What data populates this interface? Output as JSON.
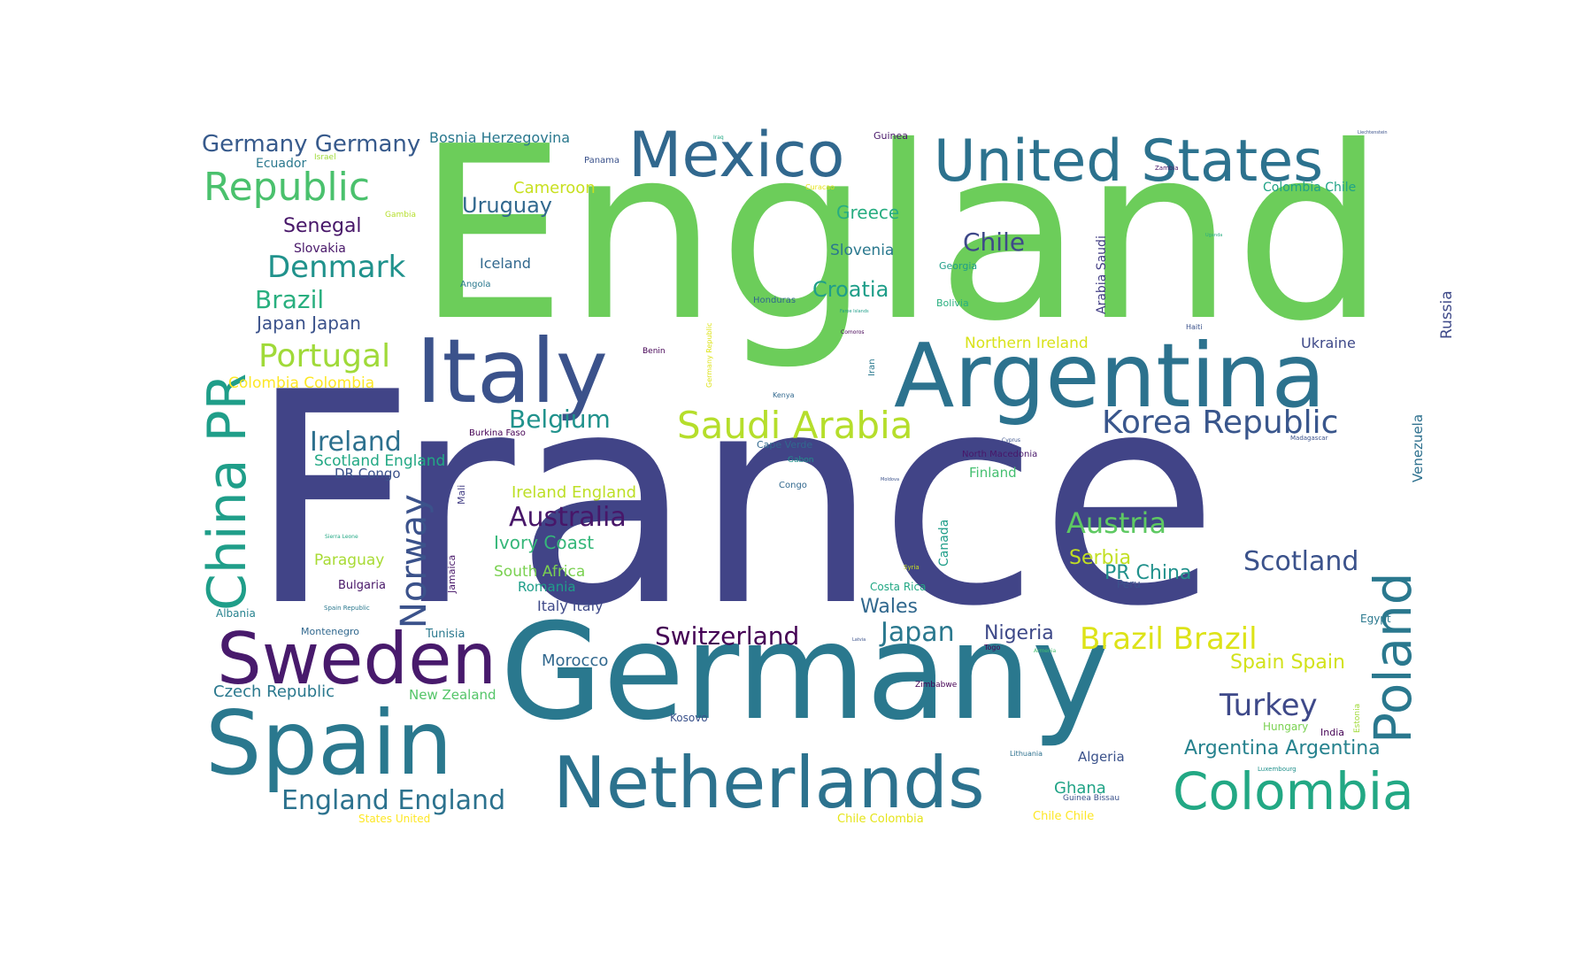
{
  "words": [
    {
      "text": "England",
      "color": "#6ccd5a",
      "vertical": false
    },
    {
      "text": "France",
      "color": "#414487",
      "vertical": false
    },
    {
      "text": "Germany",
      "color": "#2a788e",
      "vertical": false
    },
    {
      "text": "Italy",
      "color": "#3b528b",
      "vertical": false
    },
    {
      "text": "Argentina",
      "color": "#2c728e",
      "vertical": false
    },
    {
      "text": "Mexico",
      "color": "#31688e",
      "vertical": false
    },
    {
      "text": "United States",
      "color": "#2c728e",
      "vertical": false
    },
    {
      "text": "Spain",
      "color": "#2a788e",
      "vertical": false
    },
    {
      "text": "Netherlands",
      "color": "#2c728e",
      "vertical": false
    },
    {
      "text": "Sweden",
      "color": "#481a6c",
      "vertical": false
    },
    {
      "text": "Colombia",
      "color": "#22a884",
      "vertical": false
    },
    {
      "text": "China PR",
      "color": "#1f9e89",
      "vertical": true
    },
    {
      "text": "Poland",
      "color": "#2a788e",
      "vertical": true
    },
    {
      "text": "Republic",
      "color": "#4ac16d",
      "vertical": false
    },
    {
      "text": "Saudi Arabia",
      "color": "#b5de2b",
      "vertical": false
    },
    {
      "text": "Korea Republic",
      "color": "#39568c",
      "vertical": false
    },
    {
      "text": "Germany Germany",
      "color": "#375a8c",
      "vertical": false
    },
    {
      "text": "Denmark",
      "color": "#20928c",
      "vertical": false
    },
    {
      "text": "Portugal",
      "color": "#a0da39",
      "vertical": false
    },
    {
      "text": "Belgium",
      "color": "#20928c",
      "vertical": false
    },
    {
      "text": "Ireland",
      "color": "#2d708e",
      "vertical": false
    },
    {
      "text": "Australia",
      "color": "#481769",
      "vertical": false
    },
    {
      "text": "Austria",
      "color": "#5ec962",
      "vertical": false
    },
    {
      "text": "Scotland",
      "color": "#3b528b",
      "vertical": false
    },
    {
      "text": "Switzerland",
      "color": "#440154",
      "vertical": false
    },
    {
      "text": "Japan",
      "color": "#2a788e",
      "vertical": false
    },
    {
      "text": "Brazil Brazil",
      "color": "#dde318",
      "vertical": false
    },
    {
      "text": "Turkey",
      "color": "#3e4989",
      "vertical": false
    },
    {
      "text": "England England",
      "color": "#2c728e",
      "vertical": false
    },
    {
      "text": "Norway",
      "color": "#3b528b",
      "vertical": true
    },
    {
      "text": "Chile",
      "color": "#3e4989",
      "vertical": false
    },
    {
      "text": "Brazil",
      "color": "#29af7f",
      "vertical": false
    },
    {
      "text": "Senegal",
      "color": "#481769",
      "vertical": false
    },
    {
      "text": "Uruguay",
      "color": "#31688e",
      "vertical": false
    },
    {
      "text": "Croatia",
      "color": "#1f9e89",
      "vertical": false
    },
    {
      "text": "Greece",
      "color": "#27ad81",
      "vertical": false
    },
    {
      "text": "Slovenia",
      "color": "#2a788e",
      "vertical": false
    },
    {
      "text": "Serbia",
      "color": "#c2df23",
      "vertical": false
    },
    {
      "text": "PR China",
      "color": "#21918c",
      "vertical": false
    },
    {
      "text": "Wales",
      "color": "#31688e",
      "vertical": false
    },
    {
      "text": "Nigeria",
      "color": "#3e4989",
      "vertical": false
    },
    {
      "text": "Spain Spain",
      "color": "#d2e21b",
      "vertical": false
    },
    {
      "text": "Argentina Argentina",
      "color": "#26828e",
      "vertical": false
    },
    {
      "text": "Morocco",
      "color": "#31688e",
      "vertical": false
    },
    {
      "text": "Japan Japan",
      "color": "#3b528b",
      "vertical": false
    },
    {
      "text": "Iceland",
      "color": "#31688e",
      "vertical": false
    },
    {
      "text": "Cameroon",
      "color": "#c8e020",
      "vertical": false
    },
    {
      "text": "Bosnia Herzegovina",
      "color": "#2a788e",
      "vertical": false
    },
    {
      "text": "Colombia Chile",
      "color": "#20a386",
      "vertical": false
    },
    {
      "text": "Colombia Colombia",
      "color": "#fde725",
      "vertical": false
    },
    {
      "text": "Scotland England",
      "color": "#22a884",
      "vertical": false
    },
    {
      "text": "DR Congo",
      "color": "#3b528b",
      "vertical": false
    },
    {
      "text": "Ireland England",
      "color": "#bddf26",
      "vertical": false
    },
    {
      "text": "Ivory Coast",
      "color": "#35b779",
      "vertical": false
    },
    {
      "text": "Paraguay",
      "color": "#a8db34",
      "vertical": false
    },
    {
      "text": "South Africa",
      "color": "#7ad151",
      "vertical": false
    },
    {
      "text": "Romania",
      "color": "#1f9e89",
      "vertical": false
    },
    {
      "text": "Italy Italy",
      "color": "#3e4989",
      "vertical": false
    },
    {
      "text": "Czech Republic",
      "color": "#2a788e",
      "vertical": false
    },
    {
      "text": "New Zealand",
      "color": "#54c568",
      "vertical": false
    },
    {
      "text": "Northern Ireland",
      "color": "#d8e219",
      "vertical": false
    },
    {
      "text": "Finland",
      "color": "#44bf70",
      "vertical": false
    },
    {
      "text": "Ukraine",
      "color": "#3e4989",
      "vertical": false
    },
    {
      "text": "Russia",
      "color": "#3e4989",
      "vertical": true
    },
    {
      "text": "Venezuela",
      "color": "#2d708e",
      "vertical": true
    },
    {
      "text": "Arabia Saudi",
      "color": "#433e85",
      "vertical": true
    },
    {
      "text": "Algeria",
      "color": "#3b528b",
      "vertical": false
    },
    {
      "text": "Ghana",
      "color": "#20a386",
      "vertical": false
    },
    {
      "text": "Chile Chile",
      "color": "#fde725",
      "vertical": false
    },
    {
      "text": "Chile Colombia",
      "color": "#e5e419",
      "vertical": false
    },
    {
      "text": "States United",
      "color": "#fde725",
      "vertical": false
    },
    {
      "text": "Slovakia",
      "color": "#481769",
      "vertical": false
    },
    {
      "text": "Ecuador",
      "color": "#2a788e",
      "vertical": false
    },
    {
      "text": "Bulgaria",
      "color": "#481769",
      "vertical": false
    },
    {
      "text": "Albania",
      "color": "#26828e",
      "vertical": false
    },
    {
      "text": "Montenegro",
      "color": "#31688e",
      "vertical": false
    },
    {
      "text": "Tunisia",
      "color": "#2a788e",
      "vertical": false
    },
    {
      "text": "Kosovo",
      "color": "#3b528b",
      "vertical": false
    },
    {
      "text": "Costa Rica",
      "color": "#22a884",
      "vertical": false
    },
    {
      "text": "Canada",
      "color": "#1f9e89",
      "vertical": true
    },
    {
      "text": "Jamaica",
      "color": "#481769",
      "vertical": true
    },
    {
      "text": "Mali",
      "color": "#433e85",
      "vertical": true
    },
    {
      "text": "Hungary",
      "color": "#7ad151",
      "vertical": false
    },
    {
      "text": "India",
      "color": "#440154",
      "vertical": false
    },
    {
      "text": "Egypt",
      "color": "#2a788e",
      "vertical": false
    },
    {
      "text": "Peru",
      "color": "#3b528b",
      "vertical": false
    },
    {
      "text": "Estonia",
      "color": "#a0da39",
      "vertical": true
    },
    {
      "text": "Guinea",
      "color": "#481769",
      "vertical": false
    },
    {
      "text": "Panama",
      "color": "#3b528b",
      "vertical": false
    },
    {
      "text": "Georgia",
      "color": "#1f9e89",
      "vertical": false
    },
    {
      "text": "Bolivia",
      "color": "#29af7f",
      "vertical": false
    },
    {
      "text": "Honduras",
      "color": "#31688e",
      "vertical": false
    },
    {
      "text": "Angola",
      "color": "#2a788e",
      "vertical": false
    },
    {
      "text": "Gambia",
      "color": "#b5de2b",
      "vertical": false
    },
    {
      "text": "Israel",
      "color": "#a0da39",
      "vertical": false
    },
    {
      "text": "Burkina Faso",
      "color": "#440154",
      "vertical": false
    },
    {
      "text": "Cape Verde",
      "color": "#31688e",
      "vertical": false
    },
    {
      "text": "Gabon",
      "color": "#20928c",
      "vertical": false
    },
    {
      "text": "Congo",
      "color": "#31688e",
      "vertical": false
    },
    {
      "text": "North Macedonia",
      "color": "#481769",
      "vertical": false
    },
    {
      "text": "Iran",
      "color": "#2a788e",
      "vertical": true
    },
    {
      "text": "Benin",
      "color": "#440154",
      "vertical": false
    },
    {
      "text": "Kenya",
      "color": "#31688e",
      "vertical": false
    },
    {
      "text": "Haiti",
      "color": "#3b528b",
      "vertical": false
    },
    {
      "text": "Zimbabwe",
      "color": "#440154",
      "vertical": false
    },
    {
      "text": "Togo",
      "color": "#440154",
      "vertical": false
    },
    {
      "text": "Lithuania",
      "color": "#2d708e",
      "vertical": false
    },
    {
      "text": "Guinea Bissau",
      "color": "#3b528b",
      "vertical": false
    },
    {
      "text": "Luxembourg",
      "color": "#21918c",
      "vertical": false
    },
    {
      "text": "Madagascar",
      "color": "#3b528b",
      "vertical": false
    },
    {
      "text": "Zambia",
      "color": "#481769",
      "vertical": false
    },
    {
      "text": "Cyprus",
      "color": "#3b528b",
      "vertical": false
    },
    {
      "text": "Curacao",
      "color": "#e5e419",
      "vertical": false
    },
    {
      "text": "Spain Republic",
      "color": "#2a788e",
      "vertical": false
    },
    {
      "text": "Comoros",
      "color": "#440154",
      "vertical": false
    },
    {
      "text": "Faroe Islands",
      "color": "#1f9e89",
      "vertical": false
    },
    {
      "text": "Germany Republic",
      "color": "#dde318",
      "vertical": true
    },
    {
      "text": "Syria",
      "color": "#c8e020",
      "vertical": false
    },
    {
      "text": "Armenia",
      "color": "#44bf70",
      "vertical": false
    },
    {
      "text": "Moldova",
      "color": "#3b528b",
      "vertical": false
    },
    {
      "text": "Latvia",
      "color": "#3b528b",
      "vertical": false
    },
    {
      "text": "Sierra Leone",
      "color": "#22a884",
      "vertical": false
    },
    {
      "text": "Iraq",
      "color": "#22a884",
      "vertical": false
    },
    {
      "text": "Liechtenstein",
      "color": "#3b528b",
      "vertical": false
    },
    {
      "text": "Uganda",
      "color": "#27ad81",
      "vertical": false
    }
  ]
}
